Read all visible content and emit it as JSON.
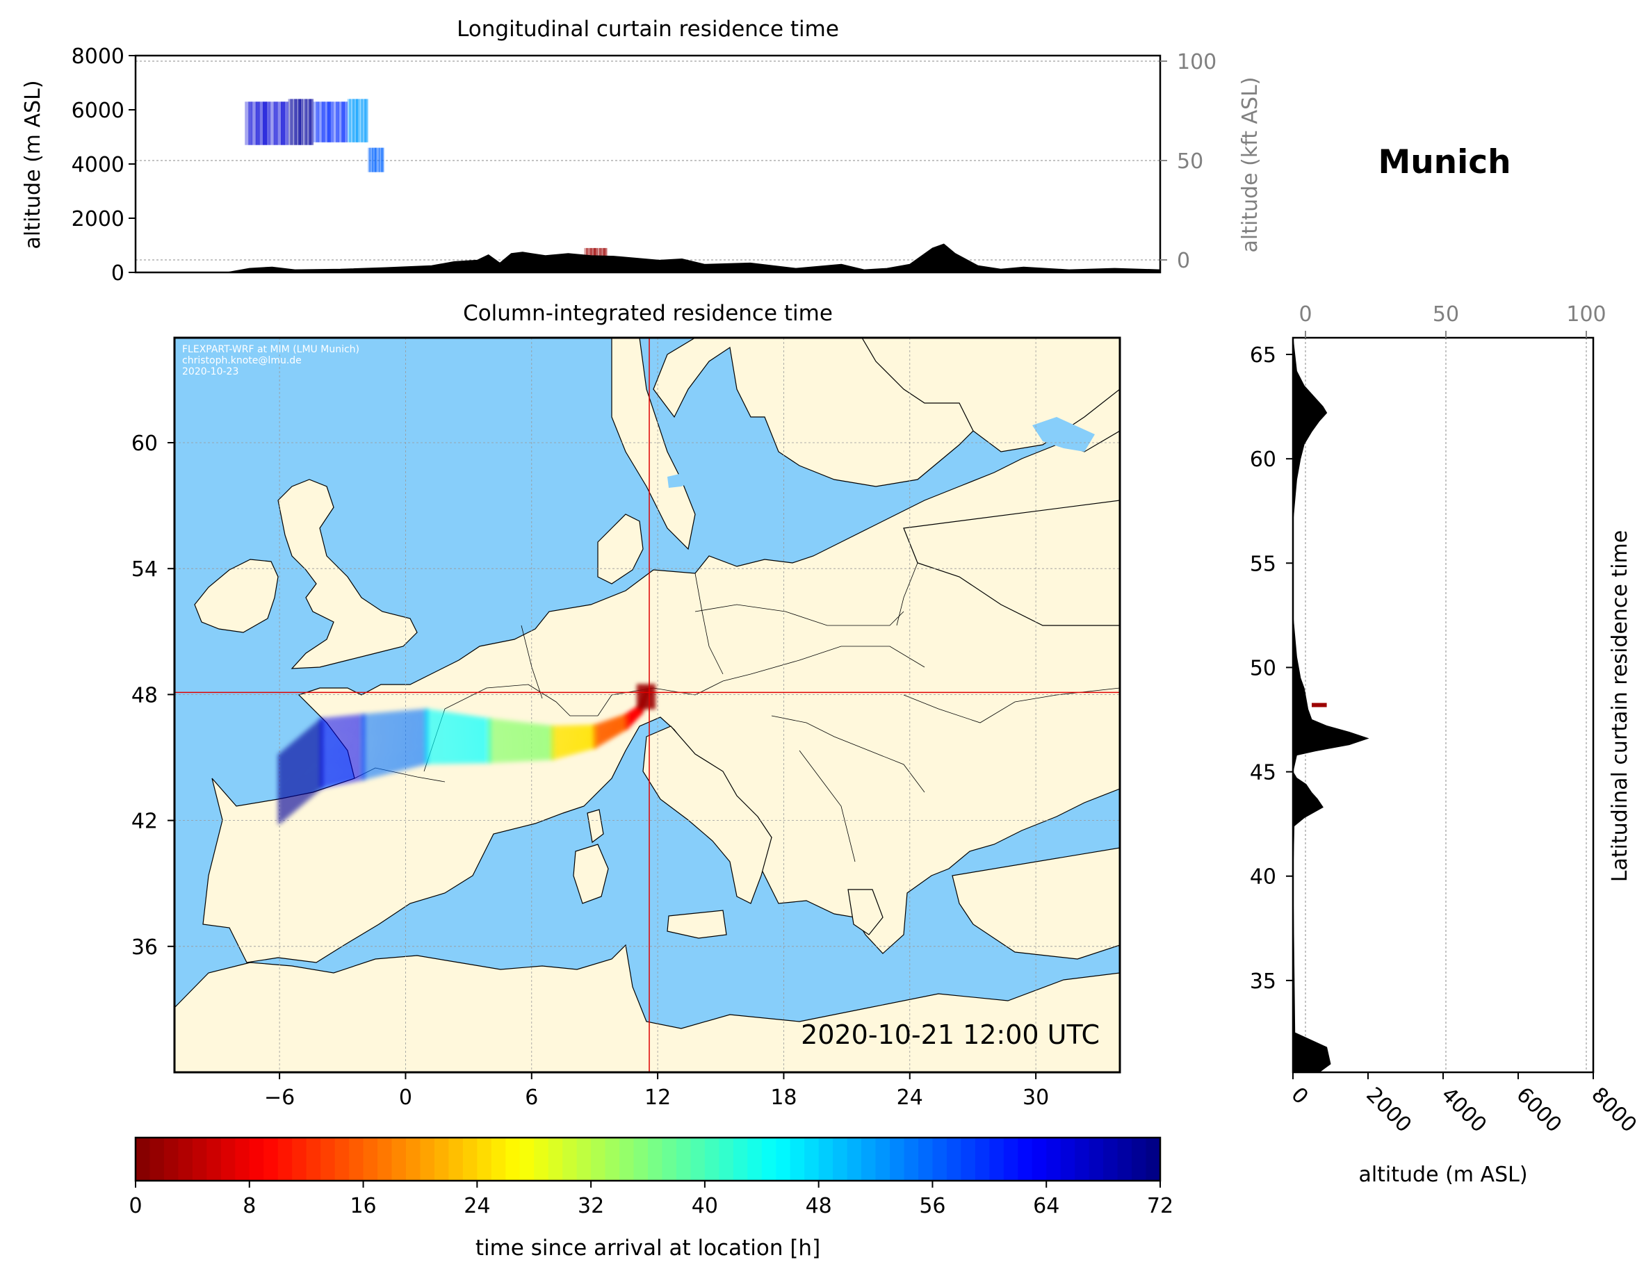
{
  "chart_data": [
    {
      "id": "top",
      "type": "area",
      "title": "Longitudinal curtain residence time",
      "ylabel": "altitude (m ASL)",
      "ylabel_right": "altitude (kft ASL)",
      "ylim": [
        0,
        8000
      ],
      "yticks": [
        "0",
        "2000",
        "4000",
        "6000",
        "8000"
      ],
      "ylim_right": [
        0,
        100
      ],
      "yticks_right": [
        "0",
        "50",
        "100"
      ],
      "xlim": [
        -9,
        36
      ],
      "terrain": {
        "x": [
          -9,
          -5,
          -4,
          -3,
          -2,
          0,
          2,
          4,
          5,
          6,
          6.5,
          7,
          7.5,
          8,
          9,
          10,
          11,
          12,
          14,
          15,
          16,
          18,
          20,
          22,
          23,
          24,
          25,
          26,
          26.5,
          27,
          28,
          29,
          30,
          32,
          34,
          36
        ],
        "y": [
          0,
          0,
          150,
          200,
          100,
          120,
          180,
          250,
          400,
          450,
          650,
          350,
          700,
          750,
          620,
          700,
          620,
          600,
          450,
          500,
          300,
          350,
          150,
          300,
          100,
          150,
          300,
          900,
          1050,
          700,
          250,
          120,
          200,
          100,
          150,
          100
        ]
      },
      "plume_blocks": [
        {
          "x0": -4.2,
          "x1": -2.3,
          "y0": 4700,
          "y1": 6300,
          "hours": 66
        },
        {
          "x0": -2.3,
          "x1": -1.2,
          "y0": 4700,
          "y1": 6400,
          "hours": 70
        },
        {
          "x0": -1.2,
          "x1": 0.3,
          "y0": 4800,
          "y1": 6300,
          "hours": 60
        },
        {
          "x0": 0.3,
          "x1": 1.2,
          "y0": 4800,
          "y1": 6400,
          "hours": 52
        },
        {
          "x0": 1.2,
          "x1": 1.9,
          "y0": 3700,
          "y1": 4600,
          "hours": 56
        },
        {
          "x0": 10.7,
          "x1": 11.7,
          "y0": 600,
          "y1": 900,
          "hours": 2
        }
      ]
    },
    {
      "id": "map",
      "type": "heatmap",
      "title": "Column-integrated residence time",
      "xlim": [
        -11,
        34
      ],
      "ylim": [
        30,
        65
      ],
      "xticks": [
        "−6",
        "0",
        "6",
        "12",
        "18",
        "24",
        "30"
      ],
      "yticks": [
        "36",
        "42",
        "48",
        "54",
        "60"
      ],
      "location": {
        "lon": 11.6,
        "lat": 48.1
      },
      "timestamp": "2020-10-21 12:00 UTC",
      "credit": [
        "FLEXPART-WRF at MIM (LMU Munich)",
        "christoph.knote@lmu.de",
        "2020-10-23"
      ],
      "plume_track": [
        {
          "lon": 11.5,
          "lat": 48.2,
          "hours": 0
        },
        {
          "lon": 11.2,
          "lat": 47.3,
          "hours": 6
        },
        {
          "lon": 10.5,
          "lat": 46.7,
          "hours": 12
        },
        {
          "lon": 9.0,
          "lat": 46.0,
          "hours": 20
        },
        {
          "lon": 7.0,
          "lat": 45.7,
          "hours": 30
        },
        {
          "lon": 4.0,
          "lat": 45.8,
          "hours": 40
        },
        {
          "lon": 1.0,
          "lat": 46.0,
          "hours": 50
        },
        {
          "lon": -2.0,
          "lat": 45.5,
          "hours": 60
        },
        {
          "lon": -4.0,
          "lat": 45.2,
          "hours": 68
        },
        {
          "lon": -6.0,
          "lat": 43.5,
          "hours": 72
        }
      ],
      "colors": {
        "ocean": "#87cefa",
        "land": "#fff8dc",
        "crosshair": "#e00000"
      }
    },
    {
      "id": "right",
      "type": "area",
      "title": "Latitudinal curtain residence time",
      "xlabel": "altitude (m ASL)",
      "xlim": [
        0,
        8000
      ],
      "xticks": [
        "0",
        "2000",
        "4000",
        "6000",
        "8000"
      ],
      "xlim_top": [
        0,
        100
      ],
      "xticks_top": [
        "0",
        "50",
        "100"
      ],
      "ylim": [
        30.6,
        65.8
      ],
      "yticks": [
        "35",
        "40",
        "45",
        "50",
        "55",
        "60",
        "65"
      ],
      "terrain": {
        "lat": [
          30.6,
          31.0,
          31.8,
          32.5,
          40,
          42.4,
          42.8,
          43.3,
          43.7,
          44.0,
          44.4,
          44.7,
          45,
          45.8,
          46.0,
          46.3,
          46.6,
          46.9,
          47.2,
          47.5,
          48.0,
          48.5,
          49.0,
          49.5,
          50.5,
          51.5,
          52.5,
          55,
          57,
          58,
          59,
          60,
          60.7,
          61.3,
          61.8,
          62.2,
          62.5,
          62.9,
          63.5,
          64.2,
          65.0,
          65.8
        ],
        "alt": [
          700,
          1000,
          900,
          50,
          0,
          30,
          300,
          800,
          650,
          500,
          350,
          100,
          0,
          100,
          600,
          1500,
          2000,
          1500,
          900,
          500,
          400,
          350,
          300,
          200,
          100,
          50,
          0,
          0,
          0,
          50,
          100,
          200,
          300,
          500,
          700,
          900,
          800,
          600,
          300,
          100,
          50,
          0
        ]
      },
      "plume": {
        "lat0": 48.1,
        "lat1": 48.3,
        "alt0": 500,
        "alt1": 900,
        "hours": 2
      }
    }
  ],
  "station_title": "Munich",
  "colorbar": {
    "label": "time since arrival at location [h]",
    "min": 0,
    "max": 72,
    "ticks": [
      "0",
      "8",
      "16",
      "24",
      "32",
      "40",
      "48",
      "56",
      "64",
      "72"
    ]
  }
}
